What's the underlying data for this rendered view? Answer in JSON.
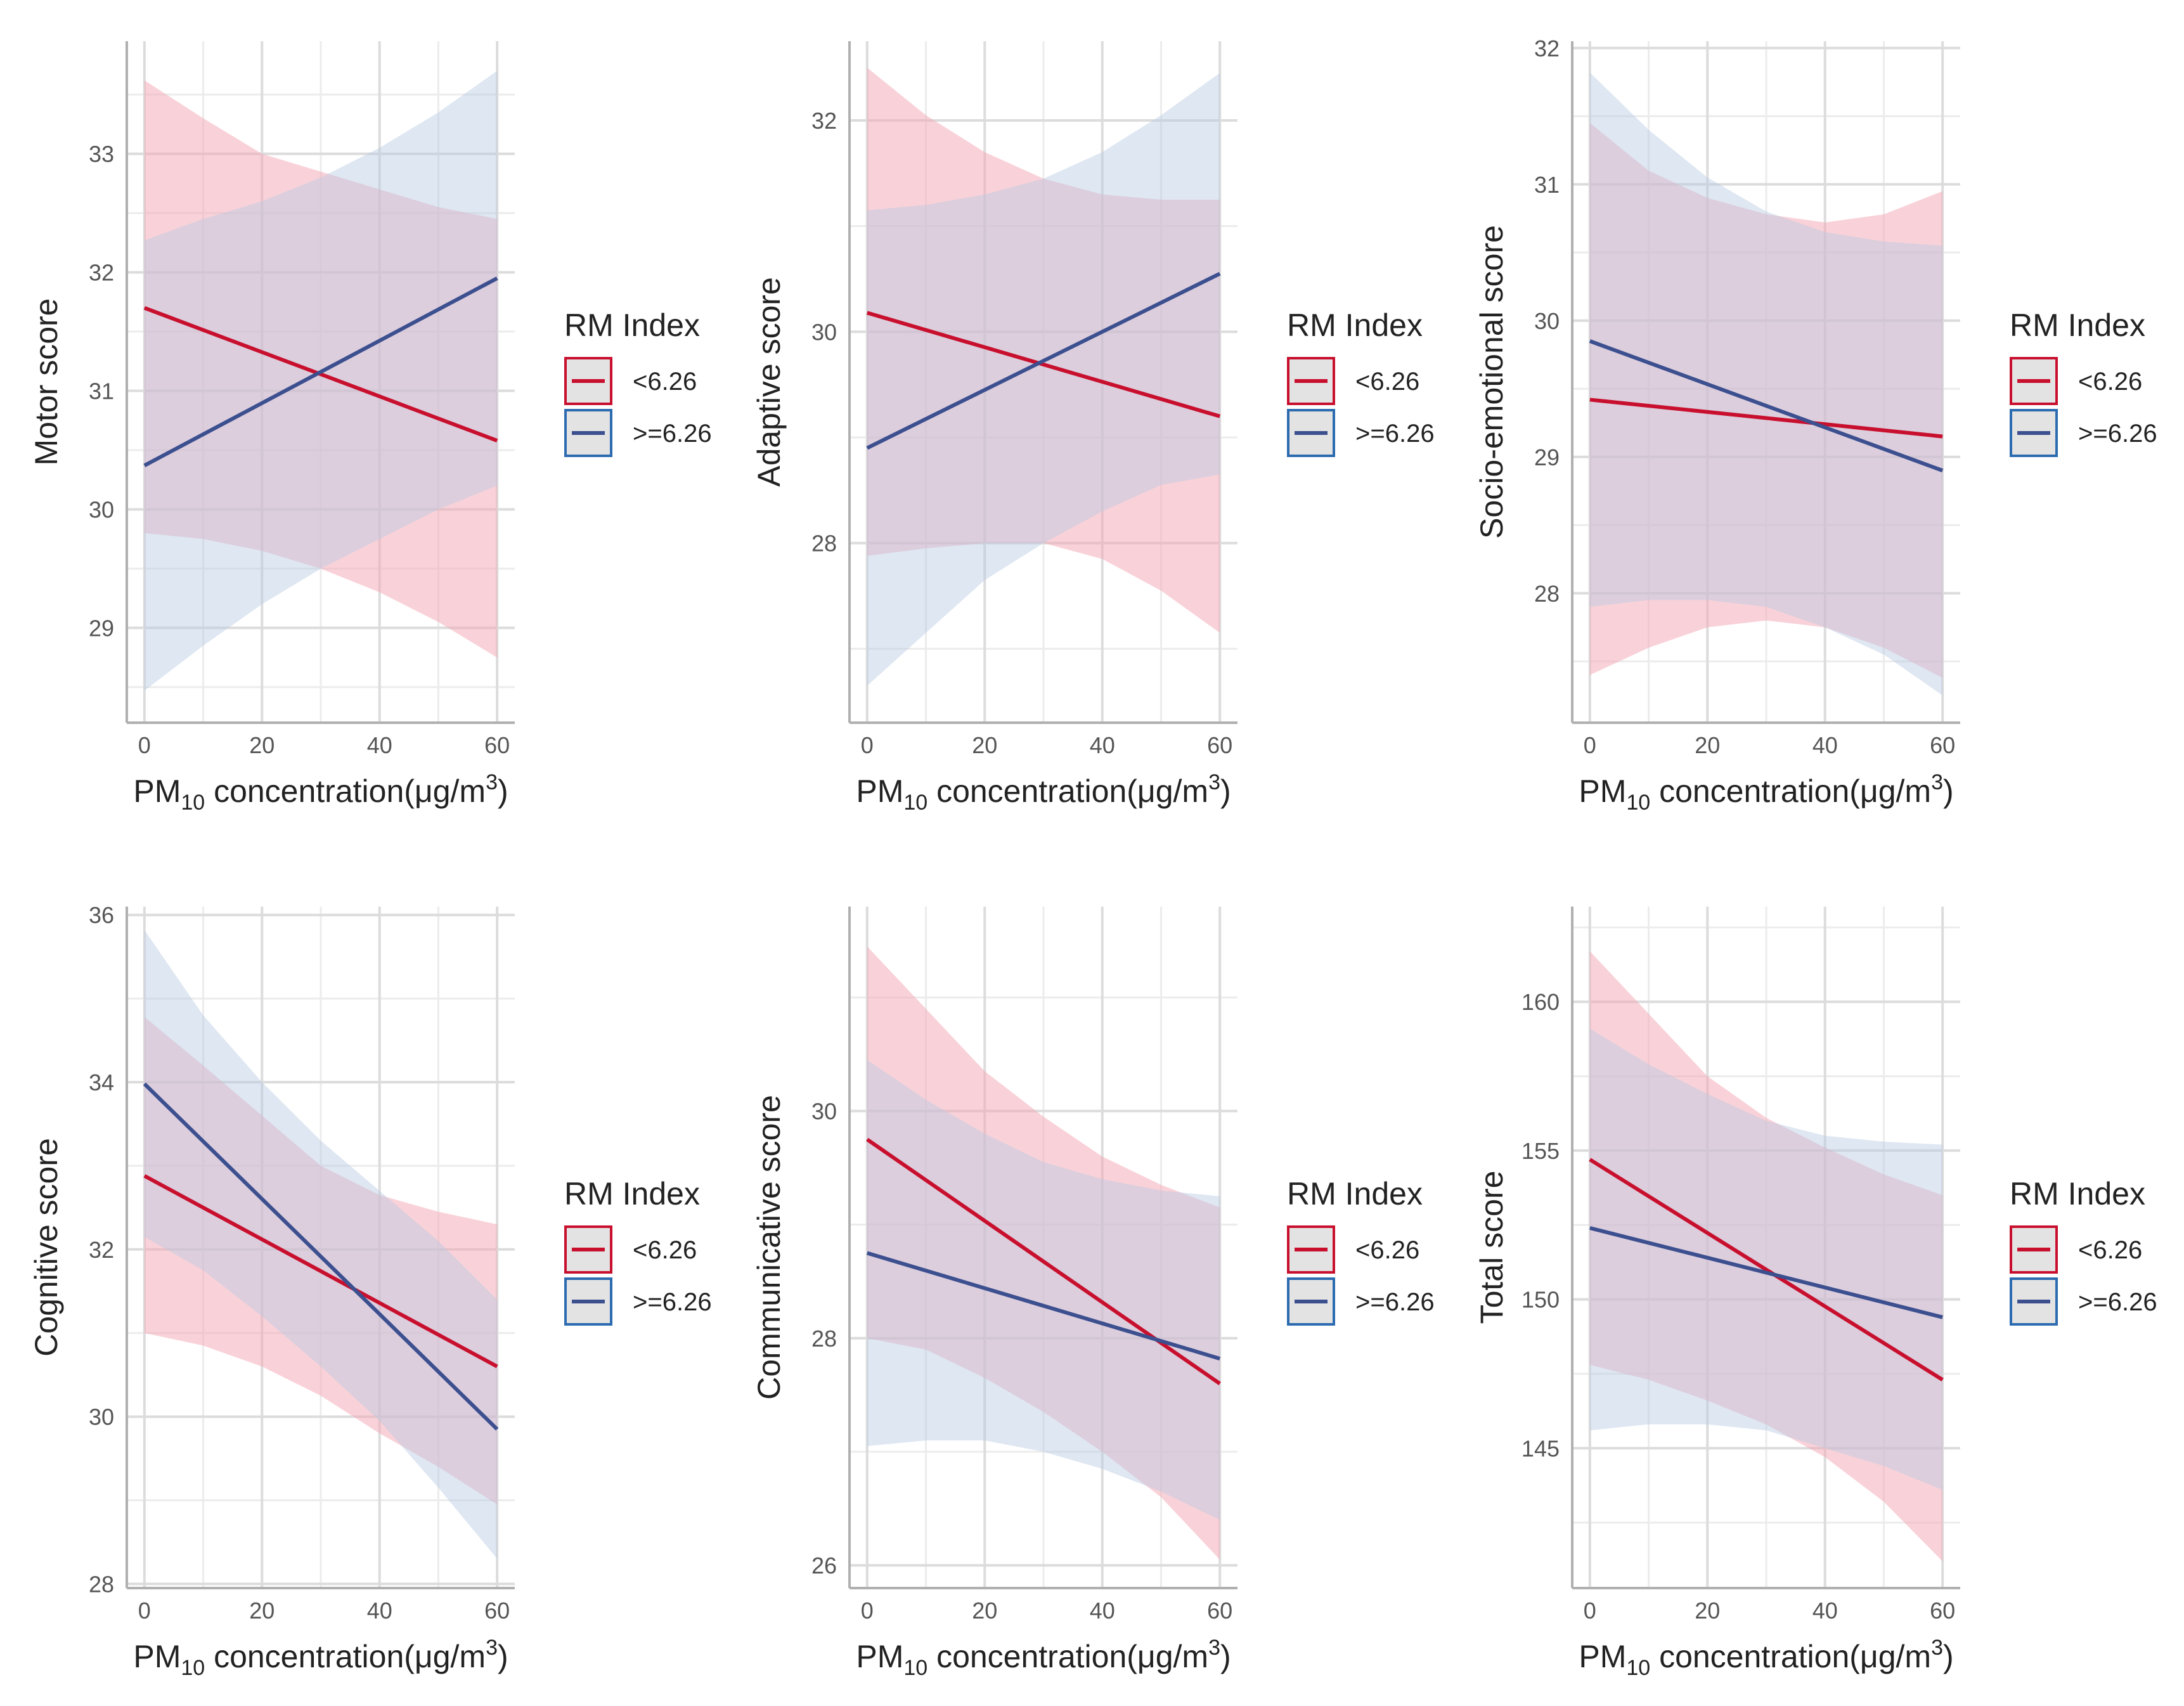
{
  "legend": {
    "title": "RM Index",
    "entries": [
      {
        "label": "<6.26",
        "color": "#c8102e",
        "fill": "#f4a6b4",
        "box": "#c8102e"
      },
      {
        "label": ">=6.26",
        "color": "#3c4f8f",
        "fill": "#b9c9e3",
        "box": "#2c6bb0"
      }
    ]
  },
  "xlabel_parts": {
    "pm": "PM",
    "sub": "10",
    "text": " concentration(μg/m",
    "sup": "3",
    "close": ")"
  },
  "chart_data": [
    {
      "type": "line",
      "ylabel": "Motor score",
      "xlabel": "PM10 concentration(μg/m3)",
      "xlim": [
        -3,
        63
      ],
      "ylim": [
        28.2,
        33.95
      ],
      "xticks": [
        0,
        20,
        40,
        60
      ],
      "yticks": [
        29,
        30,
        31,
        32,
        33
      ],
      "series": [
        {
          "name": "<6.26",
          "x": [
            0,
            60
          ],
          "y": [
            31.7,
            30.58
          ],
          "band": {
            "x": [
              0,
              10,
              20,
              30,
              40,
              50,
              60
            ],
            "lower": [
              29.8,
              29.75,
              29.65,
              29.5,
              29.3,
              29.05,
              28.75
            ],
            "upper": [
              33.62,
              33.3,
              33.0,
              32.85,
              32.7,
              32.55,
              32.45
            ]
          }
        },
        {
          "name": ">=6.26",
          "x": [
            0,
            60
          ],
          "y": [
            30.37,
            31.95
          ],
          "band": {
            "x": [
              0,
              10,
              20,
              30,
              40,
              50,
              60
            ],
            "lower": [
              28.47,
              28.85,
              29.2,
              29.5,
              29.75,
              30.0,
              30.2
            ],
            "upper": [
              32.27,
              32.45,
              32.6,
              32.8,
              33.05,
              33.35,
              33.7
            ]
          }
        }
      ]
    },
    {
      "type": "line",
      "ylabel": "Adaptive score",
      "xlabel": "PM10 concentration(μg/m3)",
      "xlim": [
        -3,
        63
      ],
      "ylim": [
        26.3,
        32.75
      ],
      "xticks": [
        0,
        20,
        40,
        60
      ],
      "yticks": [
        28,
        30,
        32
      ],
      "series": [
        {
          "name": "<6.26",
          "x": [
            0,
            60
          ],
          "y": [
            30.18,
            29.2
          ],
          "band": {
            "x": [
              0,
              10,
              20,
              30,
              40,
              50,
              60
            ],
            "lower": [
              27.88,
              27.95,
              28.0,
              28.0,
              27.85,
              27.55,
              27.15
            ],
            "upper": [
              32.5,
              32.05,
              31.7,
              31.45,
              31.3,
              31.25,
              31.25
            ]
          }
        },
        {
          "name": ">=6.26",
          "x": [
            0,
            60
          ],
          "y": [
            28.9,
            30.55
          ],
          "band": {
            "x": [
              0,
              10,
              20,
              30,
              40,
              50,
              60
            ],
            "lower": [
              26.65,
              27.15,
              27.65,
              28.0,
              28.3,
              28.55,
              28.65
            ],
            "upper": [
              31.15,
              31.2,
              31.3,
              31.45,
              31.7,
              32.05,
              32.45
            ]
          }
        }
      ]
    },
    {
      "type": "line",
      "ylabel": "Socio-emotional score",
      "xlabel": "PM10 concentration(μg/m3)",
      "xlim": [
        -3,
        63
      ],
      "ylim": [
        27.05,
        32.05
      ],
      "xticks": [
        0,
        20,
        40,
        60
      ],
      "yticks": [
        28,
        29,
        30,
        31,
        32
      ],
      "series": [
        {
          "name": "<6.26",
          "x": [
            0,
            60
          ],
          "y": [
            29.42,
            29.15
          ],
          "band": {
            "x": [
              0,
              10,
              20,
              30,
              40,
              50,
              60
            ],
            "lower": [
              27.4,
              27.6,
              27.75,
              27.8,
              27.75,
              27.6,
              27.38
            ],
            "upper": [
              31.45,
              31.1,
              30.9,
              30.78,
              30.72,
              30.78,
              30.95
            ]
          }
        },
        {
          "name": ">=6.26",
          "x": [
            0,
            60
          ],
          "y": [
            29.85,
            28.9
          ],
          "band": {
            "x": [
              0,
              10,
              20,
              30,
              40,
              50,
              60
            ],
            "lower": [
              27.9,
              27.95,
              27.95,
              27.9,
              27.75,
              27.55,
              27.25
            ],
            "upper": [
              31.82,
              31.4,
              31.05,
              30.8,
              30.65,
              30.58,
              30.55
            ]
          }
        }
      ]
    },
    {
      "type": "line",
      "ylabel": "Cognitive score",
      "xlabel": "PM10 concentration(μg/m3)",
      "xlim": [
        -3,
        63
      ],
      "ylim": [
        27.95,
        36.1
      ],
      "xticks": [
        0,
        20,
        40,
        60
      ],
      "yticks": [
        28,
        30,
        32,
        34,
        36
      ],
      "series": [
        {
          "name": "<6.26",
          "x": [
            0,
            60
          ],
          "y": [
            32.88,
            30.6
          ],
          "band": {
            "x": [
              0,
              10,
              20,
              30,
              40,
              50,
              60
            ],
            "lower": [
              31.0,
              30.85,
              30.6,
              30.25,
              29.8,
              29.4,
              28.95
            ],
            "upper": [
              34.78,
              34.2,
              33.6,
              33.0,
              32.65,
              32.45,
              32.3
            ]
          }
        },
        {
          "name": ">=6.26",
          "x": [
            0,
            60
          ],
          "y": [
            33.98,
            29.85
          ],
          "band": {
            "x": [
              0,
              10,
              20,
              30,
              40,
              50,
              60
            ],
            "lower": [
              32.15,
              31.75,
              31.2,
              30.6,
              29.95,
              29.15,
              28.3
            ],
            "upper": [
              35.82,
              34.8,
              34.0,
              33.3,
              32.7,
              32.1,
              31.4
            ]
          }
        }
      ]
    },
    {
      "type": "line",
      "ylabel": "Communicative score",
      "xlabel": "PM10 concentration(μg/m3)",
      "xlim": [
        -3,
        63
      ],
      "ylim": [
        25.8,
        31.8
      ],
      "xticks": [
        0,
        20,
        40,
        60
      ],
      "yticks": [
        26,
        28,
        30
      ],
      "series": [
        {
          "name": "<6.26",
          "x": [
            0,
            60
          ],
          "y": [
            29.75,
            27.6
          ],
          "band": {
            "x": [
              0,
              10,
              20,
              30,
              40,
              50,
              60
            ],
            "lower": [
              28.0,
              27.9,
              27.65,
              27.35,
              27.0,
              26.6,
              26.05
            ],
            "upper": [
              31.45,
              30.9,
              30.35,
              29.95,
              29.6,
              29.35,
              29.15
            ]
          }
        },
        {
          "name": ">=6.26",
          "x": [
            0,
            60
          ],
          "y": [
            28.75,
            27.82
          ],
          "band": {
            "x": [
              0,
              10,
              20,
              30,
              40,
              50,
              60
            ],
            "lower": [
              27.05,
              27.1,
              27.1,
              27.0,
              26.85,
              26.65,
              26.4
            ],
            "upper": [
              30.45,
              30.1,
              29.8,
              29.55,
              29.4,
              29.3,
              29.25
            ]
          }
        }
      ]
    },
    {
      "type": "line",
      "ylabel": "Total score",
      "xlabel": "PM10 concentration(μg/m3)",
      "xlim": [
        -3,
        63
      ],
      "ylim": [
        140.3,
        163.2
      ],
      "xticks": [
        0,
        20,
        40,
        60
      ],
      "yticks": [
        145,
        150,
        155,
        160
      ],
      "series": [
        {
          "name": "<6.26",
          "x": [
            0,
            60
          ],
          "y": [
            154.7,
            147.3
          ],
          "band": {
            "x": [
              0,
              10,
              20,
              30,
              40,
              50,
              60
            ],
            "lower": [
              147.8,
              147.3,
              146.6,
              145.8,
              144.7,
              143.2,
              141.2
            ],
            "upper": [
              161.7,
              159.6,
              157.5,
              156.1,
              155.1,
              154.2,
              153.5
            ]
          }
        },
        {
          "name": ">=6.26",
          "x": [
            0,
            60
          ],
          "y": [
            152.4,
            149.4
          ],
          "band": {
            "x": [
              0,
              10,
              20,
              30,
              40,
              50,
              60
            ],
            "lower": [
              145.6,
              145.8,
              145.8,
              145.6,
              145.0,
              144.4,
              143.6
            ],
            "upper": [
              159.1,
              157.9,
              156.9,
              156.0,
              155.5,
              155.3,
              155.2
            ]
          }
        }
      ]
    }
  ]
}
